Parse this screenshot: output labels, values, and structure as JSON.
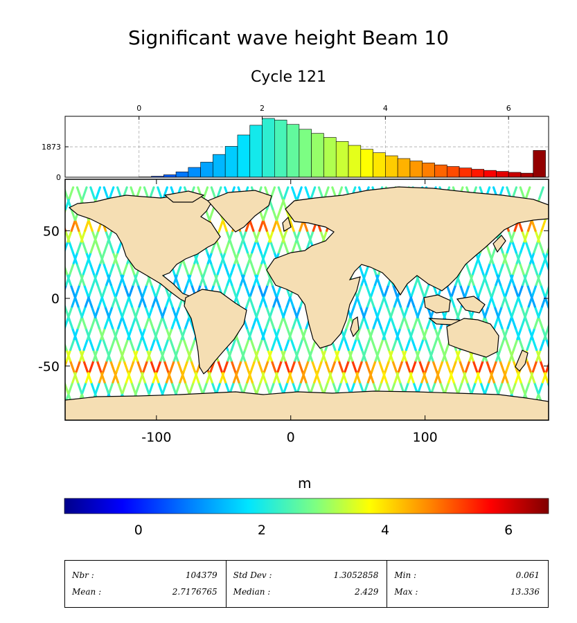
{
  "title": "Significant wave height Beam 10",
  "subtitle": "Cycle 121",
  "colors": {
    "land": "#f5deb3",
    "ocean_background": "#ffffff",
    "colormap": [
      "#00008b",
      "#0000ff",
      "#0080ff",
      "#00e5ff",
      "#7fff80",
      "#ffff00",
      "#ff8000",
      "#ff0000",
      "#800000"
    ]
  },
  "histogram": {
    "top_axis_ticks": [
      "0",
      "2",
      "4",
      "6"
    ],
    "y_ticks": [
      "0",
      "1873"
    ],
    "value_range": [
      -1.2,
      6.65
    ],
    "count_max": 3750,
    "note_last_bin": "overflow"
  },
  "map": {
    "x_ticks": [
      "-100",
      "0",
      "100"
    ],
    "y_ticks": [
      "50",
      "0",
      "-50"
    ],
    "lon_range": [
      -168,
      192
    ],
    "lat_range": [
      -90,
      88
    ]
  },
  "colorbar": {
    "label": "m",
    "ticks": [
      "0",
      "2",
      "4",
      "6"
    ],
    "range": [
      -1.2,
      6.65
    ]
  },
  "chart_data": {
    "type": "bar",
    "title": "Significant wave height Beam 10",
    "subtitle": "Cycle 121",
    "xlabel": "m",
    "x": [
      0.1,
      0.3,
      0.5,
      0.7,
      0.9,
      1.1,
      1.3,
      1.5,
      1.7,
      1.9,
      2.1,
      2.3,
      2.5,
      2.7,
      2.9,
      3.1,
      3.3,
      3.5,
      3.7,
      3.9,
      4.1,
      4.3,
      4.5,
      4.7,
      4.9,
      5.1,
      5.3,
      5.5,
      5.7,
      5.9,
      6.1,
      6.3,
      6.5
    ],
    "values": [
      20,
      60,
      150,
      330,
      600,
      930,
      1400,
      1900,
      2600,
      3200,
      3620,
      3520,
      3250,
      2950,
      2700,
      2450,
      2200,
      1960,
      1720,
      1510,
      1320,
      1150,
      1000,
      880,
      760,
      660,
      570,
      490,
      420,
      360,
      300,
      250,
      1650
    ],
    "ylim": [
      0,
      3750
    ]
  },
  "stats": {
    "nbr_label": "Nbr :",
    "nbr_value": "104379",
    "mean_label": "Mean :",
    "mean_value": "2.7176765",
    "std_label": "Std Dev :",
    "std_value": "1.3052858",
    "median_label": "Median :",
    "median_value": "2.429",
    "min_label": "Min :",
    "min_value": "0.061",
    "max_label": "Max :",
    "max_value": "13.336"
  }
}
